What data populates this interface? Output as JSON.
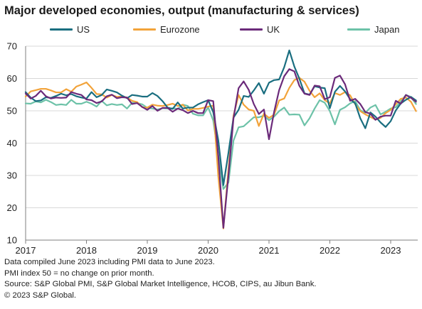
{
  "title": "Major developed economies, output (manufacturing & services)",
  "colors": {
    "US": "#1a6e80",
    "Eurozone": "#f2a33a",
    "UK": "#6b2a7a",
    "Japan": "#6dc2a8",
    "grid": "#d8d8d8",
    "axis": "#7f7f7f"
  },
  "notes": [
    "Data compiled June 2023 including PMI data to June 2023.",
    "PMI index 50 = no change on prior month.",
    "Source: S&P Global PMI, S&P Global Market Intelligence, HCOB, CIPS, au Jibun Bank.",
    "© 2023 S&P Global."
  ],
  "chart_data": {
    "type": "line",
    "title": "Major developed economies, output (manufacturing & services)",
    "xlabel": "",
    "ylabel": "",
    "x_start": "2017-01",
    "x_end": "2023-06",
    "ylim": [
      10,
      70
    ],
    "yticks": [
      10,
      20,
      30,
      40,
      50,
      60,
      70
    ],
    "xticks": [
      "2017",
      "2018",
      "2019",
      "2020",
      "2021",
      "2022",
      "2023"
    ],
    "grid": "horizontal",
    "legend": "top",
    "series": [
      {
        "name": "US",
        "values": [
          55.8,
          54.1,
          53.0,
          53.2,
          54.2,
          54.0,
          54.6,
          55.3,
          54.8,
          55.2,
          54.5,
          54.1,
          53.8,
          55.8,
          54.2,
          54.9,
          56.6,
          56.2,
          55.7,
          54.7,
          53.9,
          54.9,
          54.7,
          54.4,
          54.4,
          55.5,
          54.6,
          53.0,
          51.0,
          50.6,
          52.6,
          50.7,
          51.0,
          51.0,
          52.0,
          52.7,
          53.3,
          49.6,
          40.9,
          27.0,
          37.0,
          47.9,
          50.3,
          54.6,
          54.3,
          56.3,
          58.6,
          55.3,
          58.7,
          59.5,
          59.7,
          63.5,
          68.7,
          63.7,
          59.9,
          55.4,
          55.0,
          57.6,
          57.2,
          57.0,
          50.8,
          55.9,
          57.7,
          56.0,
          53.6,
          52.3,
          47.7,
          44.6,
          49.5,
          48.2,
          46.4,
          45.0,
          46.8,
          50.1,
          52.3,
          53.4,
          54.3,
          53.2
        ]
      },
      {
        "name": "Eurozone",
        "values": [
          54.4,
          56.0,
          56.4,
          56.8,
          56.8,
          56.3,
          55.7,
          55.7,
          56.7,
          55.9,
          57.5,
          58.1,
          58.8,
          57.1,
          55.2,
          55.1,
          54.1,
          54.9,
          54.3,
          54.5,
          54.1,
          53.1,
          52.7,
          51.1,
          51.0,
          51.9,
          51.6,
          51.5,
          51.8,
          52.2,
          51.5,
          51.9,
          50.1,
          50.6,
          50.6,
          50.9,
          51.3,
          51.6,
          29.7,
          13.6,
          31.9,
          48.5,
          54.9,
          51.9,
          50.4,
          50.0,
          45.3,
          49.1,
          47.8,
          48.8,
          53.2,
          53.8,
          57.1,
          59.5,
          60.2,
          59.0,
          56.2,
          54.2,
          55.4,
          53.3,
          52.3,
          55.5,
          54.9,
          55.8,
          54.8,
          52.0,
          49.9,
          48.9,
          48.1,
          47.3,
          47.8,
          49.3,
          50.3,
          52.0,
          53.7,
          54.1,
          52.8,
          49.9
        ]
      },
      {
        "name": "UK",
        "values": [
          55.4,
          53.8,
          54.6,
          56.2,
          54.5,
          53.8,
          54.1,
          54.0,
          54.1,
          55.8,
          55.3,
          54.9,
          53.5,
          53.3,
          52.4,
          52.9,
          54.5,
          55.0,
          53.9,
          54.2,
          54.1,
          52.1,
          52.4,
          51.2,
          50.3,
          51.5,
          50.0,
          50.9,
          50.9,
          49.7,
          50.7,
          50.2,
          49.3,
          50.0,
          49.3,
          49.3,
          53.3,
          53.0,
          36.0,
          13.8,
          30.0,
          47.7,
          57.0,
          59.1,
          56.5,
          52.1,
          49.0,
          50.4,
          41.2,
          49.6,
          56.4,
          60.7,
          62.9,
          62.2,
          57.7,
          55.3,
          54.9,
          57.8,
          57.6,
          53.6,
          54.2,
          60.2,
          60.9,
          58.2,
          53.1,
          53.7,
          52.1,
          49.6,
          49.1,
          47.2,
          48.2,
          48.5,
          48.5,
          53.1,
          52.2,
          54.9,
          54.0,
          52.8
        ]
      },
      {
        "name": "Japan",
        "values": [
          52.3,
          52.2,
          52.9,
          52.6,
          53.4,
          52.7,
          51.8,
          52.0,
          51.8,
          53.4,
          52.2,
          52.2,
          52.8,
          52.2,
          51.3,
          53.1,
          51.7,
          52.1,
          51.8,
          52.0,
          50.7,
          52.5,
          52.4,
          52.0,
          50.9,
          50.7,
          50.4,
          50.8,
          50.7,
          50.8,
          50.6,
          51.9,
          51.5,
          49.1,
          48.6,
          48.6,
          51.1,
          47.0,
          36.2,
          25.8,
          27.8,
          40.8,
          44.9,
          45.2,
          46.6,
          48.0,
          48.0,
          48.5,
          47.1,
          48.2,
          49.9,
          51.0,
          48.8,
          48.9,
          48.8,
          45.5,
          47.7,
          50.7,
          53.3,
          52.5,
          49.9,
          45.8,
          50.3,
          51.1,
          52.3,
          53.0,
          50.2,
          49.4,
          51.0,
          51.8,
          48.9,
          49.7,
          50.7,
          51.1,
          52.9,
          54.9,
          54.3,
          52.1
        ]
      }
    ]
  }
}
